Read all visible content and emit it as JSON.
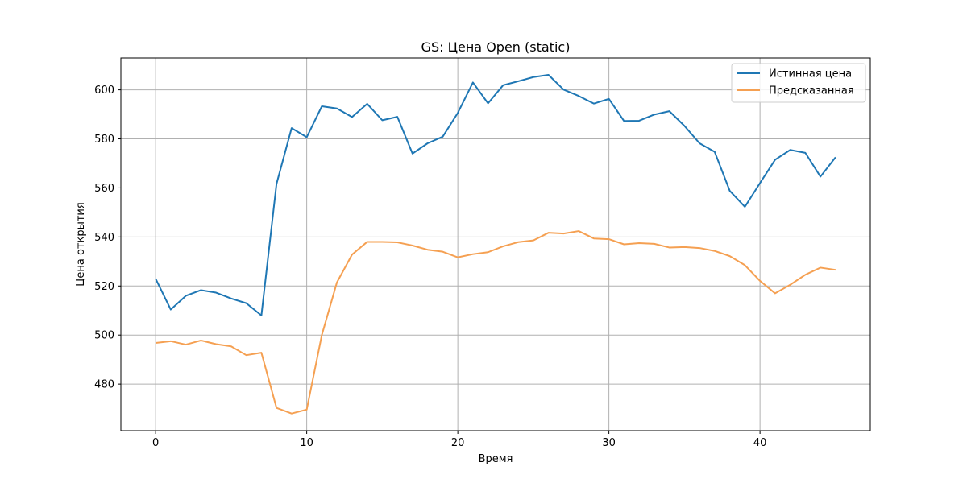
{
  "chart_data": {
    "type": "line",
    "title": "GS: Цена Open (static)",
    "xlabel": "Время",
    "ylabel": "Цена открытия",
    "xlim": [
      -2.3,
      47.3
    ],
    "ylim": [
      461.0,
      613.0
    ],
    "xticks": [
      0,
      10,
      20,
      30,
      40
    ],
    "yticks": [
      480,
      500,
      520,
      540,
      560,
      580,
      600
    ],
    "grid": true,
    "legend_position": "top-right",
    "x": [
      0,
      1,
      2,
      3,
      4,
      5,
      6,
      7,
      8,
      9,
      10,
      11,
      12,
      13,
      14,
      15,
      16,
      17,
      18,
      19,
      20,
      21,
      22,
      23,
      24,
      25,
      26,
      27,
      28,
      29,
      30,
      31,
      32,
      33,
      34,
      35,
      36,
      37,
      38,
      39,
      40,
      41,
      42,
      43,
      44,
      45
    ],
    "series": [
      {
        "name": "Истинная цена",
        "color": "#1f77b4",
        "values": [
          523.0,
          510.4,
          516.0,
          518.3,
          517.3,
          514.9,
          513.0,
          508.0,
          561.6,
          584.4,
          580.7,
          593.3,
          592.4,
          588.9,
          594.3,
          587.6,
          589.0,
          574.0,
          578.2,
          580.9,
          590.6,
          603.0,
          594.5,
          601.9,
          603.5,
          605.2,
          606.1,
          600.1,
          597.5,
          594.4,
          596.3,
          587.3,
          587.4,
          589.9,
          591.3,
          585.3,
          578.2,
          574.7,
          558.8,
          552.3,
          562.0,
          571.5,
          575.5,
          574.3,
          564.6,
          572.5
        ]
      },
      {
        "name": "Предсказанная",
        "color": "#f5a052",
        "values": [
          496.8,
          497.5,
          496.1,
          497.8,
          496.3,
          495.4,
          491.8,
          492.8,
          470.3,
          468.0,
          469.6,
          500.0,
          521.5,
          532.8,
          538.0,
          538.0,
          537.8,
          536.5,
          534.8,
          534.0,
          531.7,
          533.0,
          533.8,
          536.2,
          537.9,
          538.6,
          541.7,
          541.4,
          542.4,
          539.4,
          539.1,
          537.0,
          537.5,
          537.2,
          535.7,
          535.9,
          535.5,
          534.3,
          532.2,
          528.5,
          522.1,
          517.0,
          520.5,
          524.6,
          527.5,
          526.6
        ]
      }
    ]
  }
}
